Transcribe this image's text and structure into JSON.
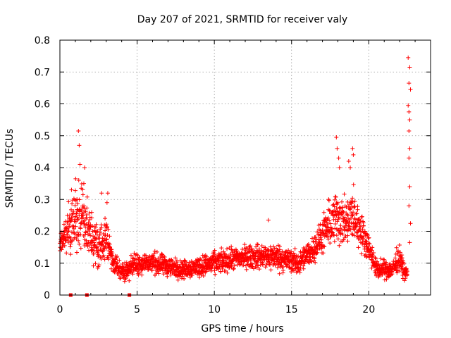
{
  "chart_data": {
    "type": "scatter",
    "title": "Day 207 of 2021, SRMTID for receiver valy",
    "xlabel": "GPS time / hours",
    "ylabel": "SRMTID / TECUs",
    "xlim": [
      0,
      24
    ],
    "ylim": [
      0,
      0.8
    ],
    "xticks": [
      0,
      5,
      10,
      15,
      20
    ],
    "xtick_labels": [
      "0",
      "5",
      "10",
      "15",
      "20"
    ],
    "yticks": [
      0,
      0.1,
      0.2,
      0.3,
      0.4,
      0.5,
      0.6,
      0.7,
      0.8
    ],
    "ytick_labels": [
      "0",
      "0.1",
      "0.2",
      "0.3",
      "0.4",
      "0.5",
      "0.6",
      "0.7",
      "0.8"
    ],
    "grid": true,
    "marker": "+",
    "color": "#ff0000",
    "series": [
      {
        "name": "SRMTID",
        "envelope": [
          {
            "t": 0.0,
            "base": 0.15,
            "spread": 0.05
          },
          {
            "t": 0.5,
            "base": 0.2,
            "spread": 0.1
          },
          {
            "t": 1.0,
            "base": 0.25,
            "spread": 0.15
          },
          {
            "t": 1.5,
            "base": 0.25,
            "spread": 0.15
          },
          {
            "t": 2.0,
            "base": 0.18,
            "spread": 0.1
          },
          {
            "t": 2.5,
            "base": 0.15,
            "spread": 0.1
          },
          {
            "t": 3.0,
            "base": 0.18,
            "spread": 0.1
          },
          {
            "t": 3.5,
            "base": 0.1,
            "spread": 0.05
          },
          {
            "t": 4.0,
            "base": 0.07,
            "spread": 0.04
          },
          {
            "t": 5.0,
            "base": 0.1,
            "spread": 0.05
          },
          {
            "t": 6.0,
            "base": 0.1,
            "spread": 0.05
          },
          {
            "t": 8.0,
            "base": 0.08,
            "spread": 0.04
          },
          {
            "t": 10.0,
            "base": 0.1,
            "spread": 0.05
          },
          {
            "t": 12.0,
            "base": 0.12,
            "spread": 0.05
          },
          {
            "t": 14.0,
            "base": 0.12,
            "spread": 0.06
          },
          {
            "t": 15.5,
            "base": 0.1,
            "spread": 0.05
          },
          {
            "t": 16.5,
            "base": 0.15,
            "spread": 0.06
          },
          {
            "t": 17.5,
            "base": 0.22,
            "spread": 0.1
          },
          {
            "t": 18.0,
            "base": 0.25,
            "spread": 0.13
          },
          {
            "t": 18.5,
            "base": 0.22,
            "spread": 0.1
          },
          {
            "t": 19.0,
            "base": 0.25,
            "spread": 0.13
          },
          {
            "t": 19.5,
            "base": 0.2,
            "spread": 0.08
          },
          {
            "t": 20.0,
            "base": 0.15,
            "spread": 0.06
          },
          {
            "t": 20.5,
            "base": 0.08,
            "spread": 0.04
          },
          {
            "t": 21.5,
            "base": 0.08,
            "spread": 0.04
          },
          {
            "t": 22.0,
            "base": 0.12,
            "spread": 0.06
          },
          {
            "t": 22.3,
            "base": 0.07,
            "spread": 0.03
          },
          {
            "t": 22.5,
            "base": 0.07,
            "spread": 0.03
          }
        ],
        "peaks": [
          {
            "x": 1.2,
            "y": 0.515
          },
          {
            "x": 1.25,
            "y": 0.47
          },
          {
            "x": 1.3,
            "y": 0.41
          },
          {
            "x": 1.6,
            "y": 0.4
          },
          {
            "x": 1.55,
            "y": 0.35
          },
          {
            "x": 0.75,
            "y": 0.33
          },
          {
            "x": 2.7,
            "y": 0.32
          },
          {
            "x": 3.1,
            "y": 0.32
          },
          {
            "x": 3.05,
            "y": 0.29
          },
          {
            "x": 13.5,
            "y": 0.235
          },
          {
            "x": 17.4,
            "y": 0.3
          },
          {
            "x": 17.9,
            "y": 0.495
          },
          {
            "x": 17.95,
            "y": 0.46
          },
          {
            "x": 18.05,
            "y": 0.43
          },
          {
            "x": 18.1,
            "y": 0.4
          },
          {
            "x": 18.7,
            "y": 0.42
          },
          {
            "x": 18.8,
            "y": 0.4
          },
          {
            "x": 18.95,
            "y": 0.46
          },
          {
            "x": 19.0,
            "y": 0.44
          },
          {
            "x": 22.55,
            "y": 0.745
          },
          {
            "x": 22.65,
            "y": 0.715
          },
          {
            "x": 22.6,
            "y": 0.665
          },
          {
            "x": 22.7,
            "y": 0.645
          },
          {
            "x": 22.55,
            "y": 0.595
          },
          {
            "x": 22.6,
            "y": 0.575
          },
          {
            "x": 22.65,
            "y": 0.55
          },
          {
            "x": 22.6,
            "y": 0.515
          },
          {
            "x": 22.65,
            "y": 0.46
          },
          {
            "x": 22.6,
            "y": 0.43
          },
          {
            "x": 22.65,
            "y": 0.34
          },
          {
            "x": 22.6,
            "y": 0.28
          },
          {
            "x": 22.7,
            "y": 0.225
          },
          {
            "x": 22.65,
            "y": 0.165
          }
        ],
        "zero_markers": [
          {
            "x": 0.7,
            "y": 0
          },
          {
            "x": 1.75,
            "y": 0
          },
          {
            "x": 4.5,
            "y": 0
          }
        ]
      }
    ]
  }
}
